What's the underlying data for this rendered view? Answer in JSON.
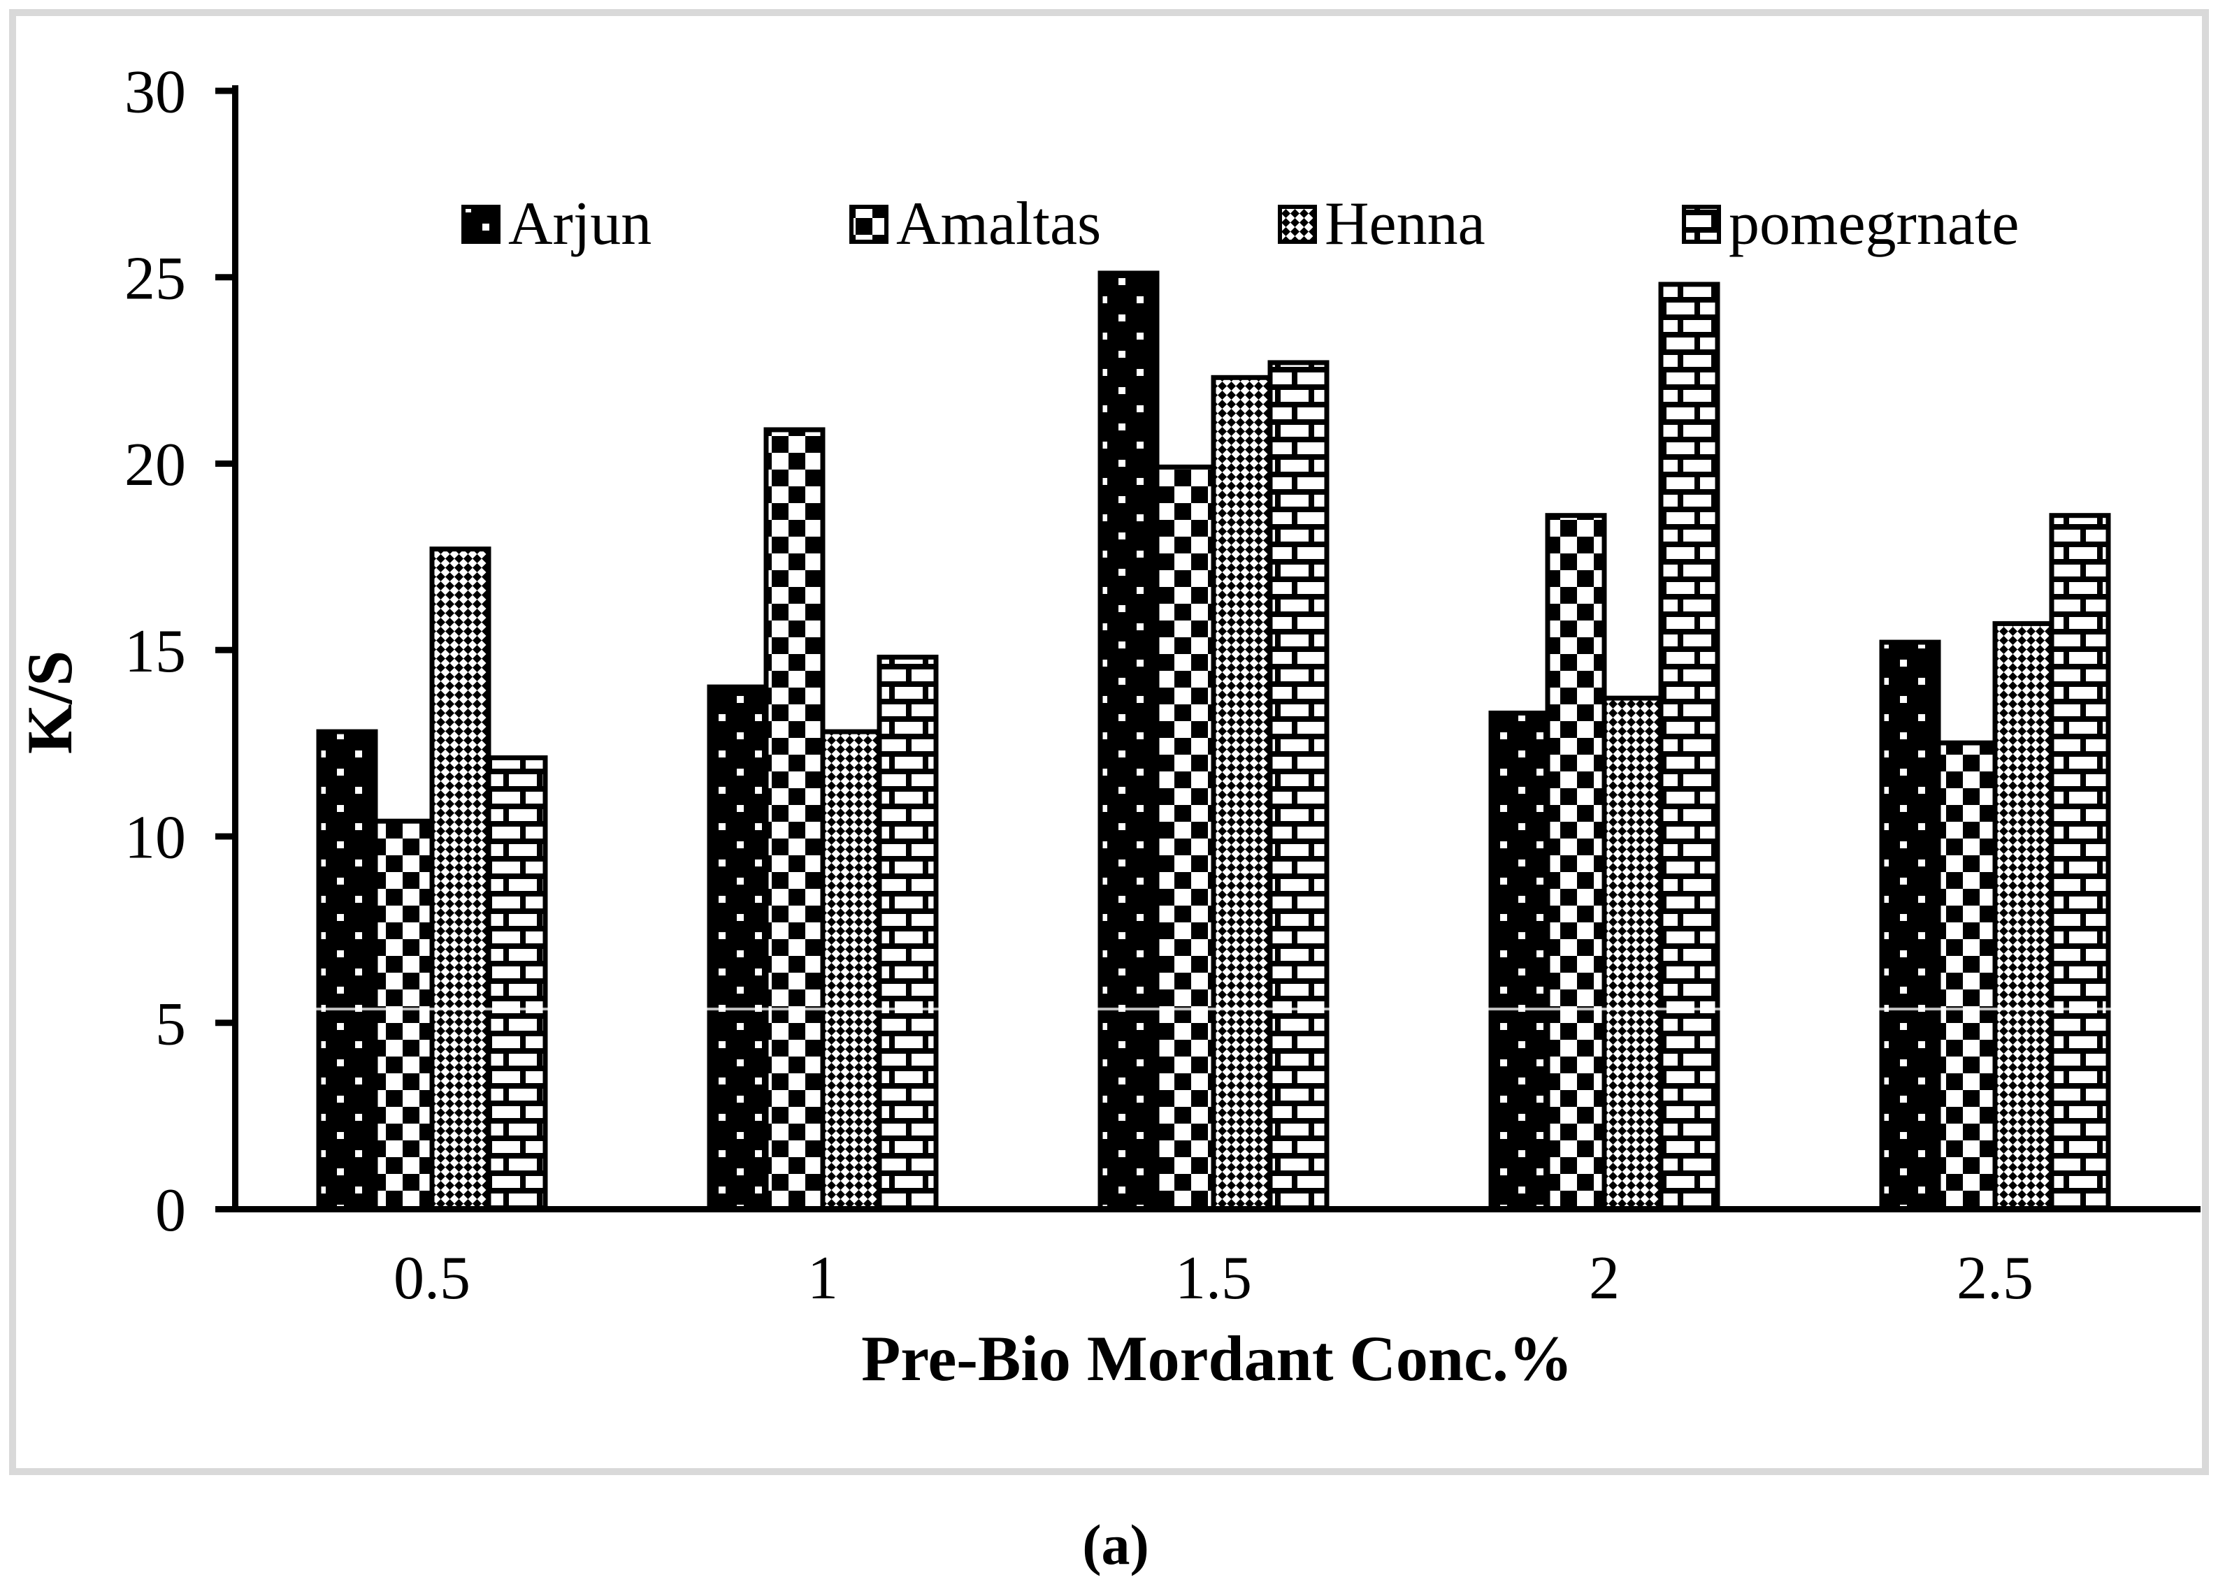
{
  "caption": "(a)",
  "yticks": [
    "0",
    "5",
    "10",
    "15",
    "20",
    "25",
    "30"
  ],
  "chart_data": {
    "type": "bar",
    "title": "",
    "xlabel": "Pre-Bio Mordant Conc.%",
    "ylabel": "K/S",
    "categories": [
      "0.5",
      "1",
      "1.5",
      "2",
      "2.5"
    ],
    "series": [
      {
        "name": "Arjun",
        "pattern": "dots",
        "values": [
          12.8,
          14.0,
          25.1,
          13.3,
          15.2
        ]
      },
      {
        "name": "Amaltas",
        "pattern": "checker",
        "values": [
          10.4,
          20.9,
          19.9,
          18.6,
          12.5
        ]
      },
      {
        "name": "Henna",
        "pattern": "diamond",
        "values": [
          17.7,
          12.8,
          22.3,
          13.7,
          15.7
        ]
      },
      {
        "name": "pomegrnate",
        "pattern": "brick",
        "values": [
          12.1,
          14.8,
          22.7,
          24.8,
          18.6
        ]
      }
    ],
    "ylim": [
      0,
      30
    ],
    "ytick_step": 5,
    "legend_position": "top",
    "grid": false,
    "colors": {
      "foreground": "#000000",
      "background": "#ffffff",
      "panel_border": "#d9d9d9"
    }
  }
}
